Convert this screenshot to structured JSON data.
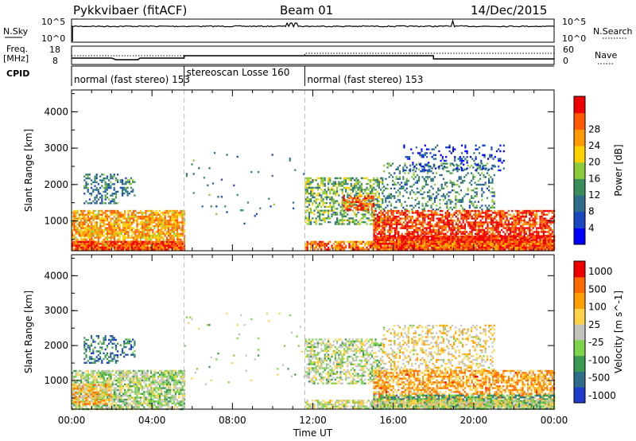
{
  "header": {
    "title": "Pykkvibaer (fitACF)",
    "beam": "Beam 01",
    "date": "14/Dec/2015"
  },
  "top_labels": {
    "nsky": "N.Sky",
    "nsky_hi": "10^5",
    "nsky_lo": "10^0",
    "nsearch": "N.Search",
    "nsearch_hi": "10^5",
    "nsearch_lo": "10^0",
    "freq": "Freq.",
    "freq_unit": "[MHz]",
    "freq_hi": "18",
    "freq_lo": "8",
    "nave": "Nave",
    "nave_hi": "60",
    "nave_lo": "0",
    "cpid": "CPID"
  },
  "modes": [
    {
      "start": 0.0,
      "end": 5.6,
      "label": "normal (fast stereo) 153"
    },
    {
      "start": 5.6,
      "end": 11.6,
      "label": "stereoscan Losse 160"
    },
    {
      "start": 11.6,
      "end": 24.0,
      "label": "normal (fast stereo) 153"
    }
  ],
  "chart_data": [
    {
      "type": "heatmap",
      "title": "",
      "xlabel": "",
      "ylabel": "Slant Range [km]",
      "xlim": [
        0,
        24
      ],
      "ylim": [
        180,
        4600
      ],
      "yticks": [
        "1000",
        "2000",
        "3000",
        "4000"
      ],
      "xticks": [
        "00:00",
        "04:00",
        "08:00",
        "12:00",
        "16:00",
        "20:00",
        "00:00"
      ],
      "colorbar": {
        "label": "Power [dB]",
        "ticks": [
          "4",
          "8",
          "12",
          "16",
          "20",
          "24",
          "28"
        ],
        "colors": [
          "#0000ff",
          "#1a48c0",
          "#2e6e8c",
          "#3a8e5c",
          "#8ccc3a",
          "#ffd000",
          "#ff9a00",
          "#ff5a00",
          "#ee0000"
        ]
      },
      "regions": [
        {
          "x": [
            0.0,
            5.6
          ],
          "y": [
            200,
            1300
          ],
          "level": 0.7,
          "density": 0.8
        },
        {
          "x": [
            0.0,
            5.6
          ],
          "y": [
            200,
            450
          ],
          "level": 0.86,
          "density": 0.9
        },
        {
          "x": [
            0.6,
            2.3
          ],
          "y": [
            1500,
            2300
          ],
          "level": 0.3,
          "density": 0.45
        },
        {
          "x": [
            2.4,
            3.1
          ],
          "y": [
            1700,
            2200
          ],
          "level": 0.3,
          "density": 0.45
        },
        {
          "x": [
            11.6,
            15.5
          ],
          "y": [
            900,
            2200
          ],
          "level": 0.45,
          "density": 0.55
        },
        {
          "x": [
            13.5,
            15.0
          ],
          "y": [
            1300,
            1700
          ],
          "level": 0.85,
          "density": 0.7
        },
        {
          "x": [
            15.5,
            21.0
          ],
          "y": [
            1300,
            2600
          ],
          "level": 0.35,
          "density": 0.3
        },
        {
          "x": [
            15.0,
            24.0
          ],
          "y": [
            300,
            1300
          ],
          "level": 0.9,
          "density": 0.72
        },
        {
          "x": [
            15.0,
            24.0
          ],
          "y": [
            200,
            600
          ],
          "level": 0.94,
          "density": 0.9
        },
        {
          "x": [
            16.5,
            21.5
          ],
          "y": [
            2400,
            3100
          ],
          "level": 0.15,
          "density": 0.2
        },
        {
          "x": [
            11.6,
            24.0
          ],
          "y": [
            200,
            450
          ],
          "level": 0.8,
          "density": 0.75
        },
        {
          "x": [
            5.6,
            11.6
          ],
          "y": [
            900,
            3000
          ],
          "level": 0.3,
          "density": 0.015
        }
      ]
    },
    {
      "type": "heatmap",
      "title": "",
      "xlabel": "Time UT",
      "ylabel": "Slant Range [km]",
      "xlim": [
        0,
        24
      ],
      "ylim": [
        180,
        4600
      ],
      "yticks": [
        "1000",
        "2000",
        "3000",
        "4000"
      ],
      "xticks": [
        "00:00",
        "04:00",
        "08:00",
        "12:00",
        "16:00",
        "20:00",
        "00:00"
      ],
      "colorbar": {
        "label": "Velocity [m s^-1]",
        "ticks": [
          "1000",
          "500",
          "100",
          "25",
          "-25",
          "-100",
          "-500",
          "-1000"
        ],
        "colors": [
          "#1e3cc8",
          "#2f6e8a",
          "#3a9a50",
          "#7ed34a",
          "#c4c4be",
          "#ffd24a",
          "#ffa000",
          "#ff6a00",
          "#ee0000"
        ]
      },
      "regions": [
        {
          "x": [
            0.0,
            5.6
          ],
          "y": [
            200,
            1300
          ],
          "level": 0.45,
          "density": 0.75
        },
        {
          "x": [
            0.0,
            2.0
          ],
          "y": [
            300,
            900
          ],
          "level": 0.7,
          "density": 0.5
        },
        {
          "x": [
            0.6,
            2.3
          ],
          "y": [
            1500,
            2300
          ],
          "level": 0.18,
          "density": 0.45
        },
        {
          "x": [
            2.4,
            3.1
          ],
          "y": [
            1700,
            2200
          ],
          "level": 0.2,
          "density": 0.45
        },
        {
          "x": [
            11.6,
            15.5
          ],
          "y": [
            900,
            2200
          ],
          "level": 0.47,
          "density": 0.55
        },
        {
          "x": [
            15.5,
            21.0
          ],
          "y": [
            1300,
            2600
          ],
          "level": 0.6,
          "density": 0.35
        },
        {
          "x": [
            15.0,
            24.0
          ],
          "y": [
            300,
            1300
          ],
          "level": 0.72,
          "density": 0.65
        },
        {
          "x": [
            15.0,
            24.0
          ],
          "y": [
            200,
            600
          ],
          "level": 0.3,
          "density": 0.7
        },
        {
          "x": [
            11.6,
            24.0
          ],
          "y": [
            200,
            450
          ],
          "level": 0.5,
          "density": 0.7
        },
        {
          "x": [
            5.6,
            11.6
          ],
          "y": [
            900,
            3000
          ],
          "level": 0.45,
          "density": 0.015
        }
      ]
    }
  ]
}
